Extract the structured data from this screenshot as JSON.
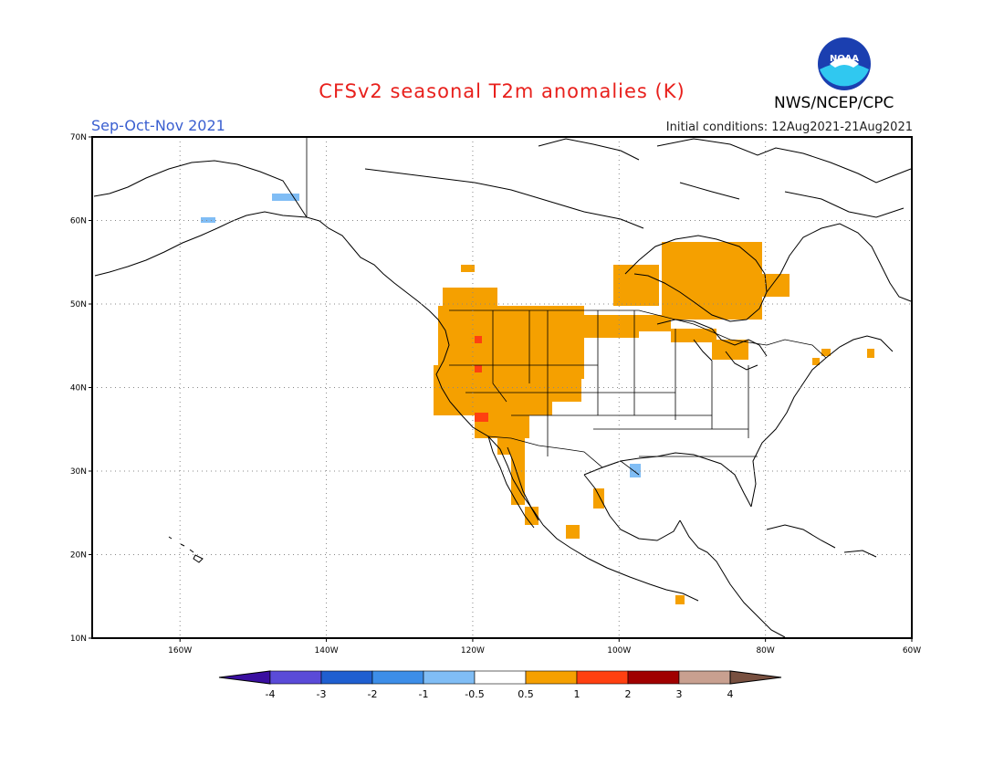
{
  "title": "CFSv2 seasonal T2m anomalies (K)",
  "period": "Sep-Oct-Nov 2021",
  "initial_conditions": "Initial conditions: 12Aug2021-21Aug2021",
  "agency": "NWS/NCEP/CPC",
  "logo_text": "NOAA",
  "map": {
    "lon_range": [
      -172,
      -60
    ],
    "lat_range": [
      10,
      70
    ],
    "lat_ticks": [
      "10N",
      "20N",
      "30N",
      "40N",
      "50N",
      "60N",
      "70N"
    ],
    "lon_ticks": [
      "160W",
      "140W",
      "120W",
      "100W",
      "80W",
      "60W"
    ],
    "grid_style": "dotted"
  },
  "colorbar": {
    "labels": [
      "-4",
      "-3",
      "-2",
      "-1",
      "-0.5",
      "0.5",
      "1",
      "2",
      "3",
      "4"
    ],
    "colors": [
      "#3a0fa0",
      "#5a4bd8",
      "#1f5fd0",
      "#3d8ee8",
      "#80bdf5",
      "#ffffff",
      "#f5a000",
      "#ff4010",
      "#a00000",
      "#c8a090",
      "#785040"
    ]
  },
  "colors": {
    "warm_light": "#f5a000",
    "warm_strong": "#ff4010",
    "cool_light": "#80bdf5",
    "title": "#e8201c",
    "period": "#3a5fd0"
  }
}
